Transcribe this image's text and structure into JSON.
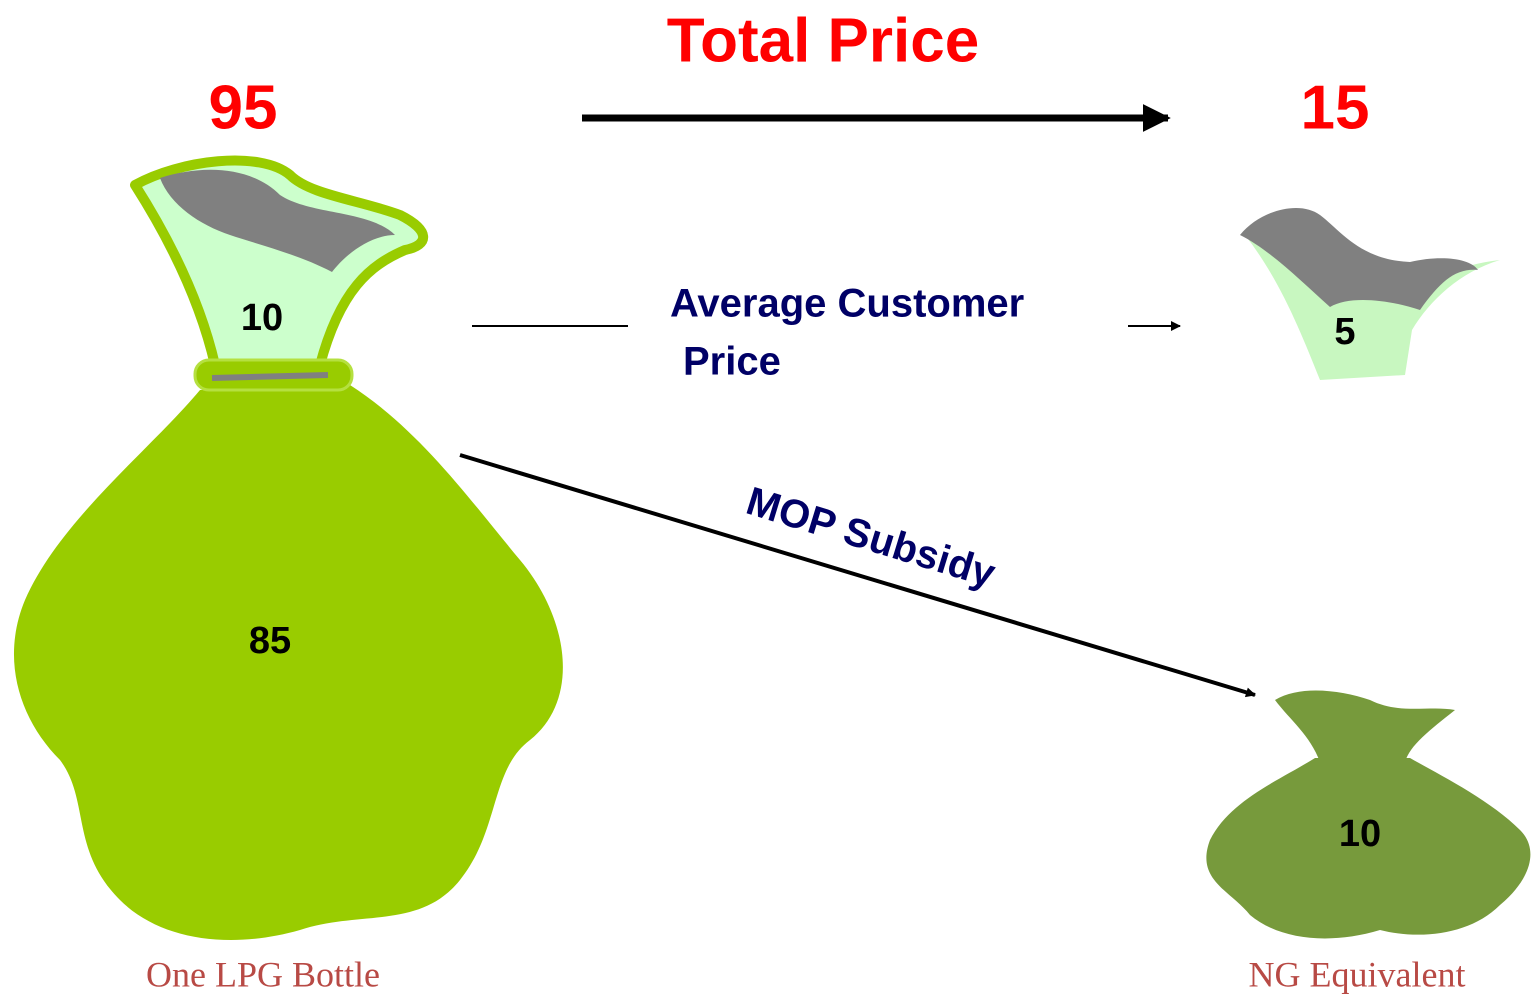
{
  "title": "Total Price",
  "lpg": {
    "total": 95,
    "customer_price": 10,
    "subsidy": 85,
    "caption": "One LPG Bottle"
  },
  "ng": {
    "total": 15,
    "customer_price": 5,
    "subsidy": 10,
    "caption": "NG Equivalent"
  },
  "labels": {
    "average_customer_price": [
      "Average Customer",
      "Price"
    ],
    "mop_subsidy": "MOP Subsidy"
  }
}
